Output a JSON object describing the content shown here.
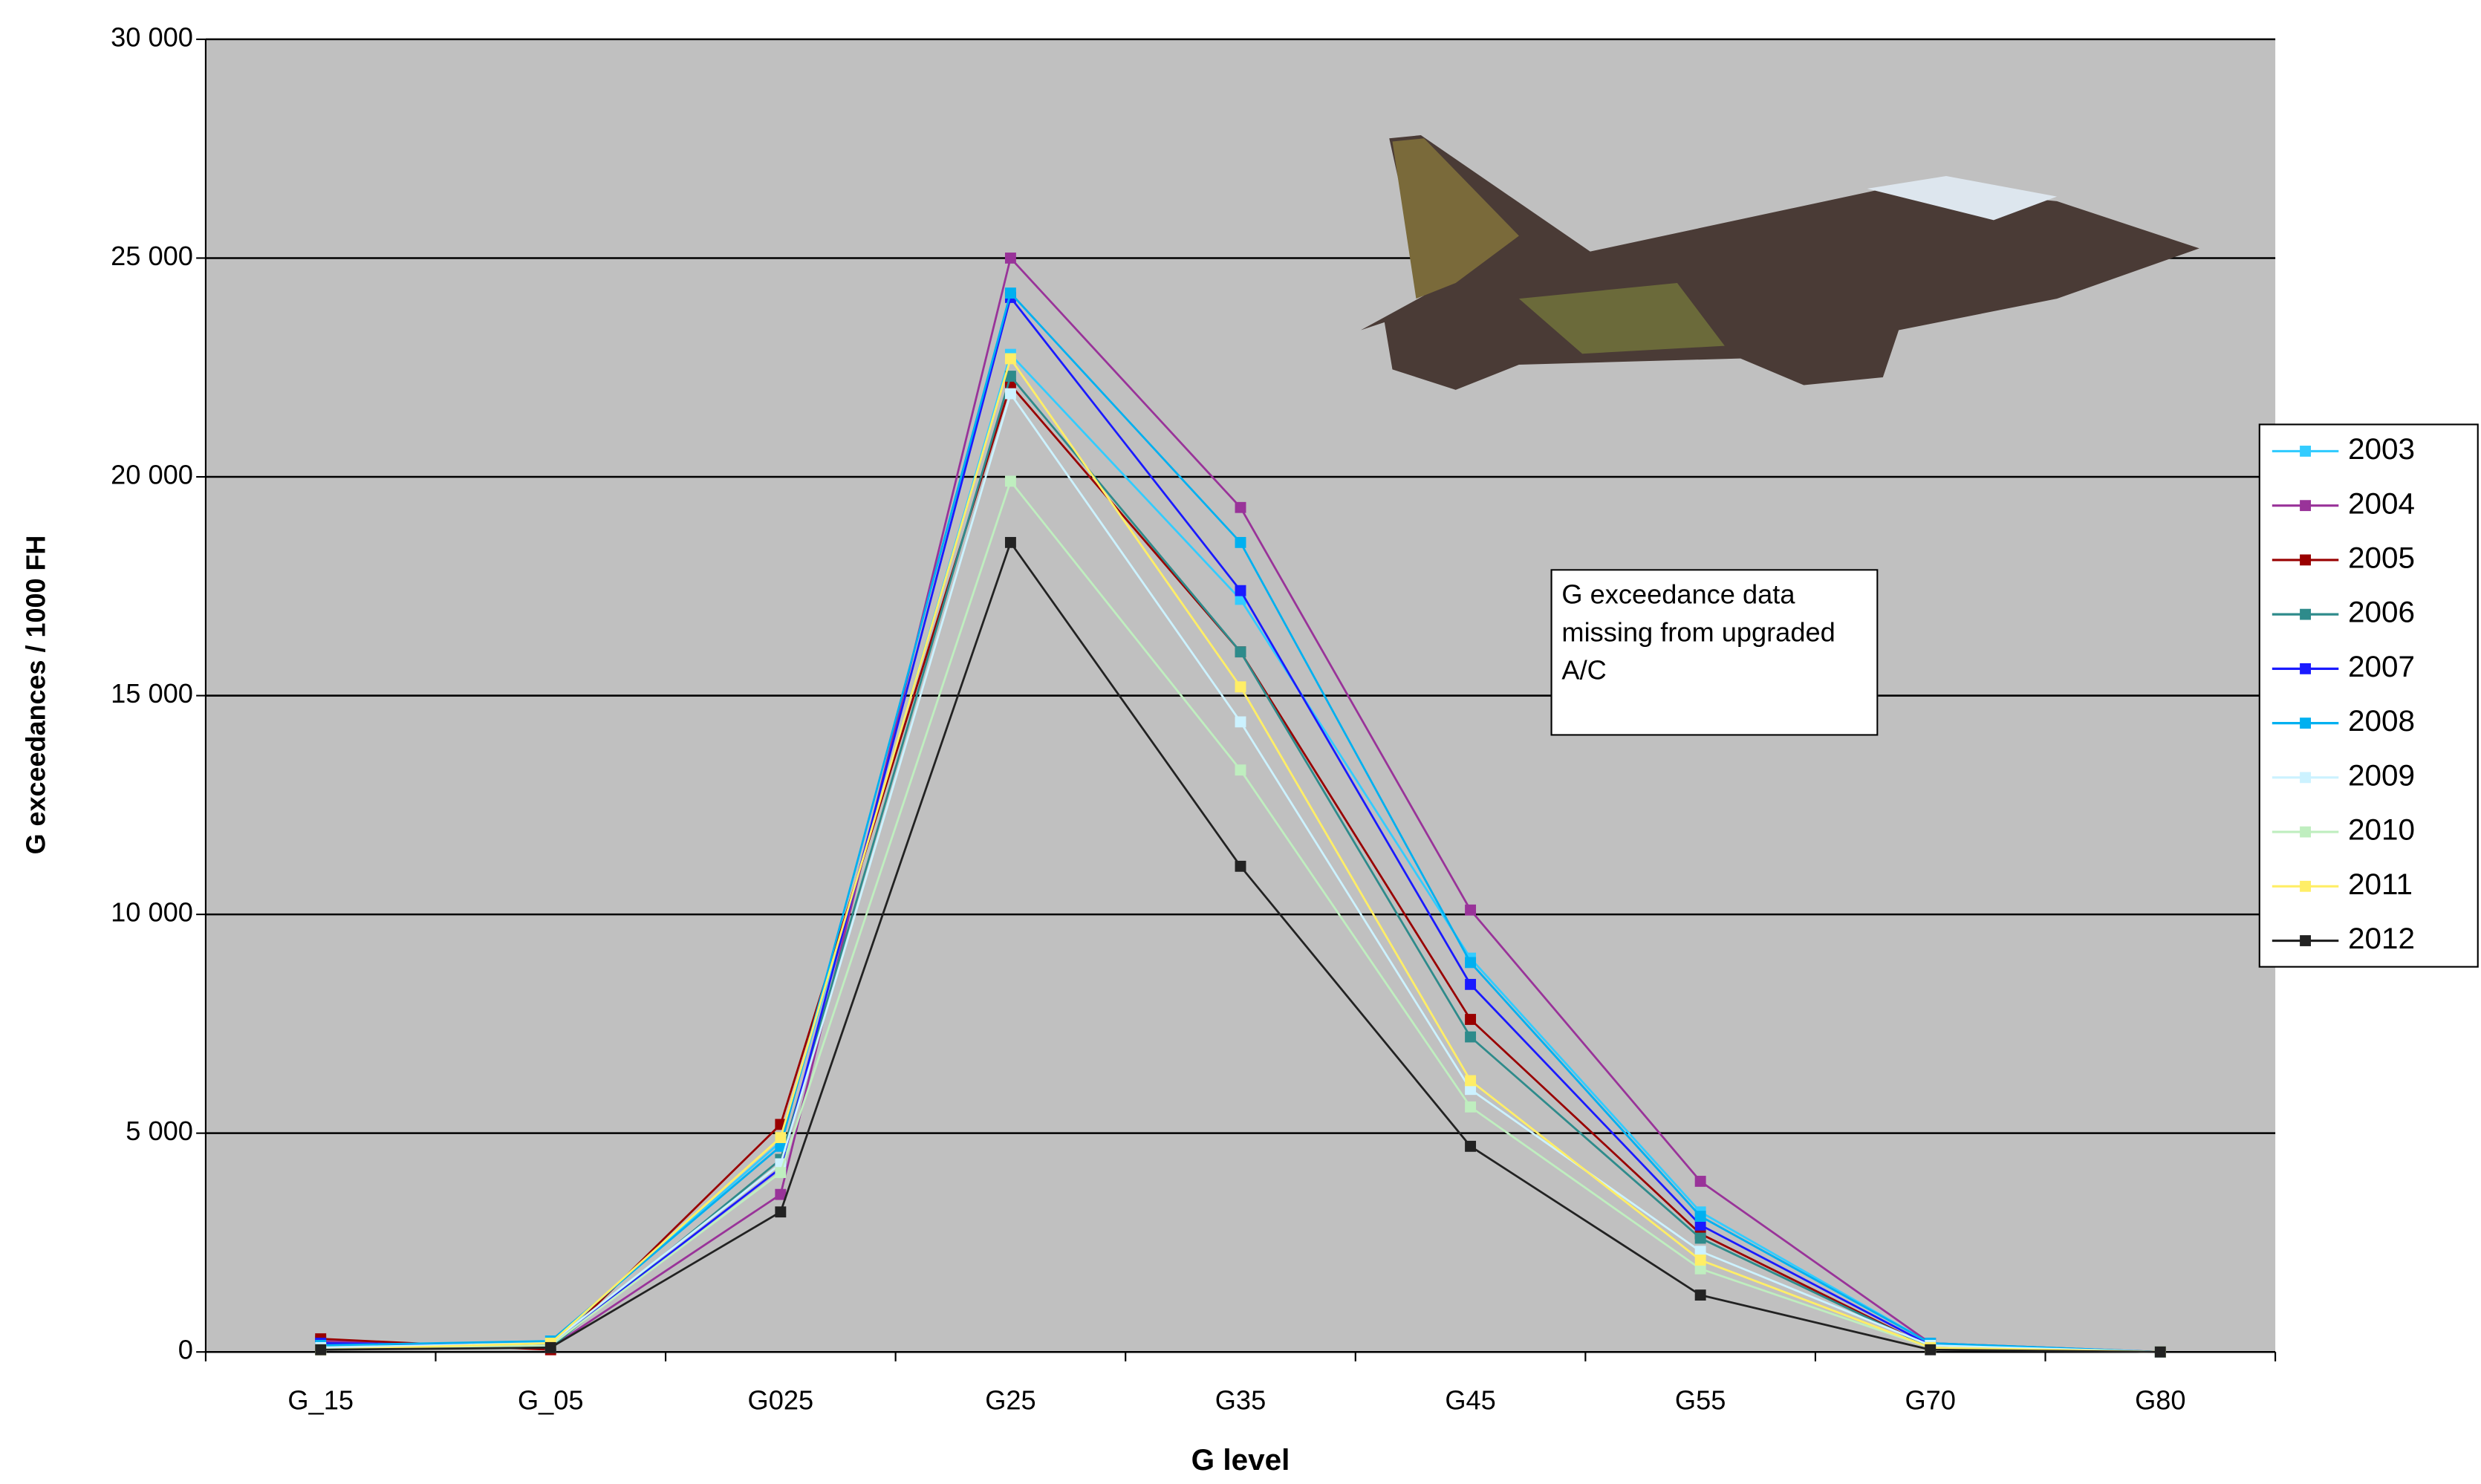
{
  "chart_data": {
    "type": "line",
    "x_label": "G level",
    "y_label": "G exceedances / 1000 FH",
    "annotation": "G exceedance data missing from upgraded A/C",
    "categories": [
      "G_15",
      "G_05",
      "G025",
      "G25",
      "G35",
      "G45",
      "G55",
      "G70",
      "G80"
    ],
    "ylim": [
      0,
      30000
    ],
    "yticks": [
      0,
      {
        "value": 5000,
        "label": "5 000"
      },
      {
        "value": 10000,
        "label": "10 000"
      },
      {
        "value": 15000,
        "label": "15 000"
      },
      {
        "value": 20000,
        "label": "20 000"
      },
      {
        "value": 25000,
        "label": "25 000"
      },
      {
        "value": 30000,
        "label": "30 000"
      }
    ],
    "grid": true,
    "legend": "right",
    "series": [
      {
        "name": "2003",
        "color": "#33ccff",
        "values": [
          100,
          200,
          4800,
          22800,
          17200,
          9000,
          3200,
          200,
          0
        ]
      },
      {
        "name": "2004",
        "color": "#993399",
        "values": [
          250,
          100,
          3600,
          25000,
          19300,
          10100,
          3900,
          200,
          0
        ]
      },
      {
        "name": "2005",
        "color": "#990000",
        "values": [
          300,
          50,
          5200,
          22100,
          16000,
          7600,
          2700,
          100,
          0
        ]
      },
      {
        "name": "2006",
        "color": "#2e8b8b",
        "values": [
          200,
          100,
          4400,
          22300,
          16000,
          7200,
          2600,
          100,
          0
        ]
      },
      {
        "name": "2007",
        "color": "#1a1aff",
        "values": [
          200,
          150,
          4200,
          24100,
          17400,
          8400,
          2900,
          150,
          0
        ]
      },
      {
        "name": "2008",
        "color": "#00b0f0",
        "values": [
          150,
          250,
          4700,
          24200,
          18500,
          8900,
          3100,
          200,
          0
        ]
      },
      {
        "name": "2009",
        "color": "#ccf2ff",
        "values": [
          100,
          200,
          4300,
          21900,
          14400,
          6000,
          2300,
          150,
          0
        ]
      },
      {
        "name": "2010",
        "color": "#bfeebf",
        "values": [
          50,
          150,
          4100,
          19900,
          13300,
          5600,
          1900,
          100,
          0
        ]
      },
      {
        "name": "2011",
        "color": "#ffee66",
        "values": [
          50,
          200,
          4900,
          22700,
          15200,
          6200,
          2100,
          100,
          0
        ]
      },
      {
        "name": "2012",
        "color": "#222222",
        "values": [
          50,
          100,
          3200,
          18500,
          11100,
          4700,
          1300,
          50,
          0
        ]
      }
    ]
  }
}
